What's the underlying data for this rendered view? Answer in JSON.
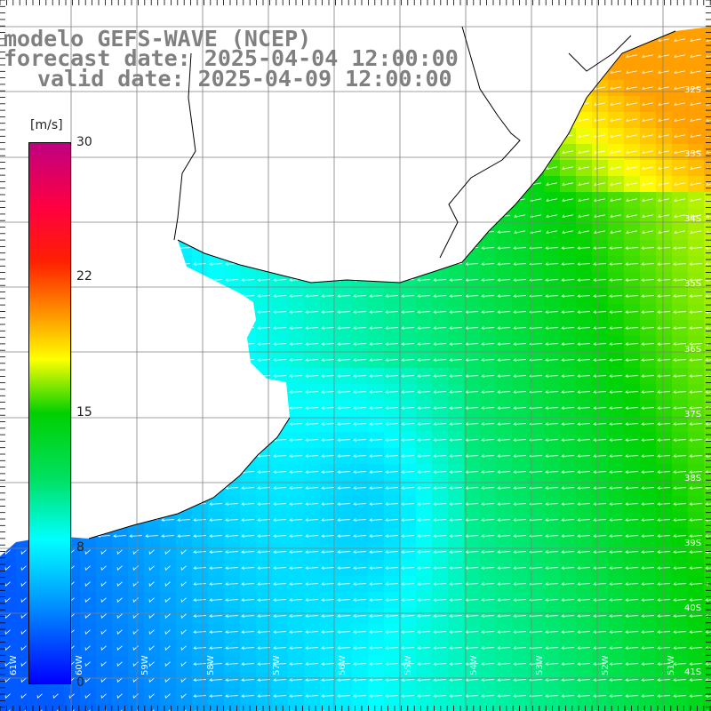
{
  "title": {
    "model": "modelo GEFS-WAVE (NCEP)",
    "forecast": "forecast date: 2025-04-04 12:00:00",
    "valid": "valid date: 2025-04-09 12:00:00"
  },
  "colorbar": {
    "unit": "[m/s]",
    "ticks": [
      "30",
      "22",
      "15",
      "8",
      "0"
    ],
    "tick_values": [
      30,
      22,
      15,
      8,
      0
    ],
    "colors": [
      "#0000ff",
      "#00a0ff",
      "#00ffff",
      "#00e060",
      "#00d000",
      "#ffff00",
      "#ff9900",
      "#ff2000",
      "#ff0040",
      "#c00080"
    ]
  },
  "lat_labels": [
    "32S",
    "33S",
    "34S",
    "35S",
    "36S",
    "37S",
    "38S",
    "39S",
    "40S",
    "41S"
  ],
  "lon_labels": [
    "61W",
    "60W",
    "59W",
    "58W",
    "57W",
    "56W",
    "55W",
    "54W",
    "53W",
    "52W",
    "51W"
  ],
  "colors": {
    "land": "#ffffff",
    "grid": "#808080",
    "coast": "#000000",
    "arrow": "#ffffff",
    "title": "#808080"
  },
  "features": [
    "Rio de la Plata estuary",
    "Uruguay coast",
    "Brazil coast (Rio Grande do Sul)",
    "Argentina coast"
  ]
}
